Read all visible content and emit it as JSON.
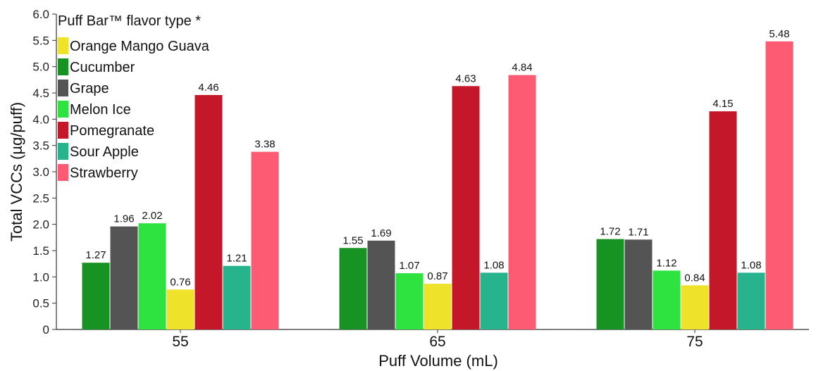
{
  "chart_data": {
    "type": "bar",
    "categories": [
      "55",
      "65",
      "75"
    ],
    "xlabel": "Puff Volume (mL)",
    "ylabel": "Total VCCs (µg/puff)",
    "ylim": [
      0,
      6.0
    ],
    "yticks": [
      "0",
      "0.5",
      "1.0",
      "1.5",
      "2.0",
      "2.5",
      "3.0",
      "3.5",
      "4.0",
      "4.5",
      "5.0",
      "5.5",
      "6.0"
    ],
    "grid": false,
    "legend": {
      "title": "Puff Bar™ flavor type  *",
      "placement": "top-left"
    },
    "series": [
      {
        "name": "Orange Mango Guava",
        "color": "#eee32a",
        "values": [
          0.76,
          0.87,
          0.84
        ],
        "labels": [
          "0.76",
          "0.87",
          "0.84"
        ]
      },
      {
        "name": "Cucumber",
        "color": "#179324",
        "values": [
          1.27,
          1.55,
          1.72
        ],
        "labels": [
          "1.27",
          "1.55",
          "1.72"
        ]
      },
      {
        "name": "Grape",
        "color": "#545454",
        "values": [
          1.96,
          1.69,
          1.71
        ],
        "labels": [
          "1.96",
          "1.69",
          "1.71"
        ]
      },
      {
        "name": "Melon Ice",
        "color": "#2ee33f",
        "values": [
          2.02,
          1.07,
          1.12
        ],
        "labels": [
          "2.02",
          "1.07",
          "1.12"
        ]
      },
      {
        "name": "Pomegranate",
        "color": "#c4172a",
        "values": [
          4.46,
          4.63,
          4.15
        ],
        "labels": [
          "4.46",
          "4.63",
          "4.15"
        ]
      },
      {
        "name": "Sour Apple",
        "color": "#27b38c",
        "values": [
          1.21,
          1.08,
          1.08
        ],
        "labels": [
          "1.21",
          "1.08",
          "1.08"
        ]
      },
      {
        "name": "Strawberry",
        "color": "#fc5b73",
        "values": [
          3.38,
          4.84,
          5.48
        ],
        "labels": [
          "3.38",
          "4.84",
          "5.48"
        ]
      }
    ],
    "bar_order": [
      "Cucumber",
      "Grape",
      "Melon Ice",
      "Orange Mango Guava",
      "Pomegranate",
      "Sour Apple",
      "Strawberry"
    ]
  }
}
